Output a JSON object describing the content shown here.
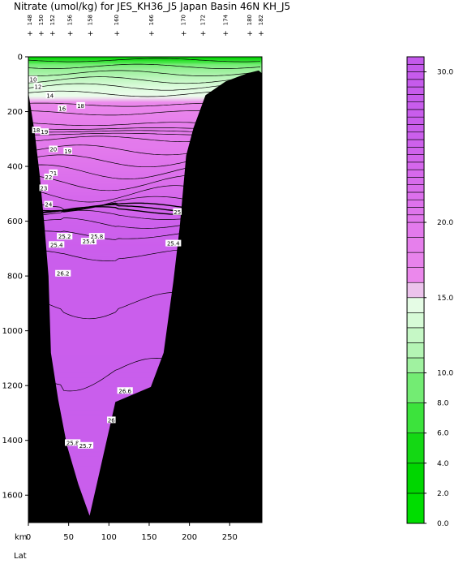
{
  "chart_data": {
    "type": "heatmap",
    "title": "Nitrate (umol/kg) for JES_KH36_J5 Japan Basin 46N KH_J5",
    "xlabel": "km",
    "xlabel2": "Lat",
    "ylabel": "",
    "xlim": [
      0,
      290
    ],
    "ylim": [
      1700,
      0
    ],
    "x_ticks": [
      0,
      50,
      100,
      150,
      200,
      250
    ],
    "y_ticks": [
      0,
      200,
      400,
      600,
      800,
      1000,
      1200,
      1400,
      1600
    ],
    "stations": [
      {
        "label": "148",
        "km": 2
      },
      {
        "label": "150",
        "km": 16
      },
      {
        "label": "152",
        "km": 30
      },
      {
        "label": "156",
        "km": 52
      },
      {
        "label": "158",
        "km": 77
      },
      {
        "label": "160",
        "km": 110
      },
      {
        "label": "166",
        "km": 153
      },
      {
        "label": "170",
        "km": 193
      },
      {
        "label": "172",
        "km": 217
      },
      {
        "label": "174",
        "km": 245
      },
      {
        "label": "180",
        "km": 275
      },
      {
        "label": "182",
        "km": 289
      }
    ],
    "colorbar": {
      "min": 0,
      "max": 31,
      "tick_labels": [
        {
          "label": "0.0",
          "value": 0
        },
        {
          "label": "2.0",
          "value": 2
        },
        {
          "label": "4.0",
          "value": 4
        },
        {
          "label": "6.0",
          "value": 6
        },
        {
          "label": "8.0",
          "value": 8
        },
        {
          "label": "10.0",
          "value": 10
        },
        {
          "label": "15.0",
          "value": 15
        },
        {
          "label": "20.0",
          "value": 20
        },
        {
          "label": "30.0",
          "value": 30
        }
      ],
      "levels": [
        0,
        2,
        4,
        6,
        8,
        10,
        11,
        12,
        13,
        14,
        15,
        16,
        17,
        18,
        19,
        20,
        20.5,
        21,
        21.5,
        22,
        22.5,
        23,
        23.5,
        24,
        24.5,
        25,
        25.5,
        26,
        26.5,
        27,
        27.5,
        28,
        28.5,
        29,
        29.5,
        30,
        30.5,
        31
      ]
    },
    "contour_labels": [
      {
        "label": "10",
        "km": 6,
        "depth": 82
      },
      {
        "label": "12",
        "km": 12,
        "depth": 108
      },
      {
        "label": "14",
        "km": 27,
        "depth": 140
      },
      {
        "label": "16",
        "km": 42,
        "depth": 188
      },
      {
        "label": "18",
        "km": 65,
        "depth": 177
      },
      {
        "label": "18",
        "km": 10,
        "depth": 267
      },
      {
        "label": "19",
        "km": 20,
        "depth": 273
      },
      {
        "label": "20",
        "km": 31,
        "depth": 336
      },
      {
        "label": "19",
        "km": 49,
        "depth": 343
      },
      {
        "label": "21",
        "km": 31,
        "depth": 423
      },
      {
        "label": "22",
        "km": 25,
        "depth": 438
      },
      {
        "label": "23",
        "km": 19,
        "depth": 478
      },
      {
        "label": "24",
        "km": 25,
        "depth": 538
      },
      {
        "label": "25",
        "km": 185,
        "depth": 565
      },
      {
        "label": "25.2",
        "km": 45,
        "depth": 655
      },
      {
        "label": "25.4",
        "km": 75,
        "depth": 673
      },
      {
        "label": "25.4",
        "km": 35,
        "depth": 685
      },
      {
        "label": "25.8",
        "km": 85,
        "depth": 655
      },
      {
        "label": "25.4",
        "km": 180,
        "depth": 680
      },
      {
        "label": "26.2",
        "km": 43,
        "depth": 790
      },
      {
        "label": "26.6",
        "km": 120,
        "depth": 1218
      },
      {
        "label": "26",
        "km": 103,
        "depth": 1325
      },
      {
        "label": "25.8",
        "km": 55,
        "depth": 1408
      },
      {
        "label": "25.7",
        "km": 71,
        "depth": 1418
      }
    ]
  }
}
